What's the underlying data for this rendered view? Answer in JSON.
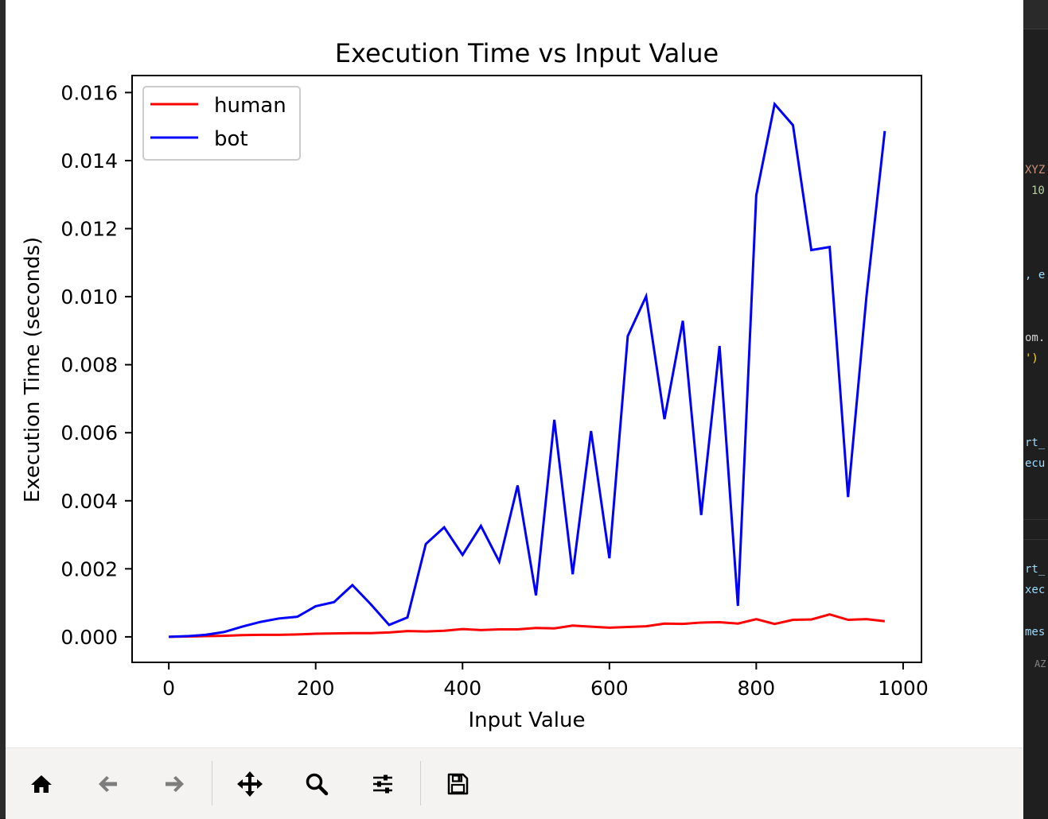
{
  "chart_data": {
    "type": "line",
    "title": "Execution Time vs Input Value",
    "xlabel": "Input Value",
    "ylabel": "Execution Time (seconds)",
    "xlim": [
      -50,
      1025
    ],
    "ylim": [
      -0.00075,
      0.0165
    ],
    "x_ticks": [
      0,
      200,
      400,
      600,
      800,
      1000
    ],
    "x_tick_labels": [
      "0",
      "200",
      "400",
      "600",
      "800",
      "1000"
    ],
    "y_ticks": [
      0.0,
      0.002,
      0.004,
      0.006,
      0.008,
      0.01,
      0.012,
      0.014,
      0.016
    ],
    "y_tick_labels": [
      "0.000",
      "0.002",
      "0.004",
      "0.006",
      "0.008",
      "0.010",
      "0.012",
      "0.014",
      "0.016"
    ],
    "legend_position": "upper-left",
    "grid": false,
    "x": [
      0,
      25,
      50,
      75,
      100,
      125,
      150,
      175,
      200,
      225,
      250,
      275,
      300,
      325,
      350,
      375,
      400,
      425,
      450,
      475,
      500,
      525,
      550,
      575,
      600,
      625,
      650,
      675,
      700,
      725,
      750,
      775,
      800,
      825,
      850,
      875,
      900,
      925,
      950,
      975
    ],
    "series": [
      {
        "name": "human",
        "color": "#ff0000",
        "values": [
          0.0,
          1e-05,
          2e-05,
          3e-05,
          5e-05,
          6e-05,
          6e-05,
          7e-05,
          9e-05,
          0.0001,
          0.00011,
          0.00011,
          0.00013,
          0.00017,
          0.00016,
          0.00018,
          0.00023,
          0.0002,
          0.00022,
          0.00022,
          0.00026,
          0.00025,
          0.00033,
          0.0003,
          0.00027,
          0.00029,
          0.00031,
          0.00039,
          0.00038,
          0.00042,
          0.00043,
          0.00039,
          0.00052,
          0.00038,
          0.0005,
          0.00051,
          0.00066,
          0.0005,
          0.00052,
          0.00046
        ]
      },
      {
        "name": "bot",
        "color": "#0000ff",
        "values": [
          0.0,
          2e-05,
          6e-05,
          0.00014,
          0.0003,
          0.00044,
          0.00054,
          0.00059,
          0.0009,
          0.00102,
          0.00152,
          0.00096,
          0.00035,
          0.00057,
          0.00273,
          0.00322,
          0.00241,
          0.00326,
          0.00221,
          0.00445,
          0.00122,
          0.00638,
          0.00184,
          0.00605,
          0.00231,
          0.00884,
          0.01001,
          0.0064,
          0.00929,
          0.00358,
          0.00855,
          0.00091,
          0.01298,
          0.01566,
          0.01504,
          0.01137,
          0.01146,
          0.00411,
          0.00999,
          0.01487
        ]
      }
    ]
  },
  "toolbar": {
    "buttons": [
      {
        "name": "home-button",
        "icon": "home-icon",
        "enabled": true
      },
      {
        "name": "back-button",
        "icon": "arrow-left-icon",
        "enabled": false
      },
      {
        "name": "forward-button",
        "icon": "arrow-right-icon",
        "enabled": false
      },
      {
        "name": "pan-button",
        "icon": "move-icon",
        "enabled": true
      },
      {
        "name": "zoom-button",
        "icon": "magnifier-icon",
        "enabled": true
      },
      {
        "name": "configure-subplots-button",
        "icon": "sliders-icon",
        "enabled": true
      },
      {
        "name": "save-button",
        "icon": "floppy-disk-icon",
        "enabled": true
      }
    ]
  },
  "background_editor": {
    "fragments": [
      {
        "text": "XYZ",
        "color": "#ce9178"
      },
      {
        "text": "10",
        "color": "#b5cea8"
      },
      {
        "text": ", e",
        "color": "#9cdcfe"
      },
      {
        "text": "om.",
        "color": "#d4d4d4"
      },
      {
        "text": "')",
        "color": "#ffd700"
      },
      {
        "text": "rt_",
        "color": "#9cdcfe"
      },
      {
        "text": "ecu",
        "color": "#9cdcfe"
      },
      {
        "text": "rt_",
        "color": "#9cdcfe"
      },
      {
        "text": "xec",
        "color": "#9cdcfe"
      },
      {
        "text": "mes",
        "color": "#9cdcfe"
      },
      {
        "text": "AZ",
        "color": "#858585"
      }
    ]
  }
}
